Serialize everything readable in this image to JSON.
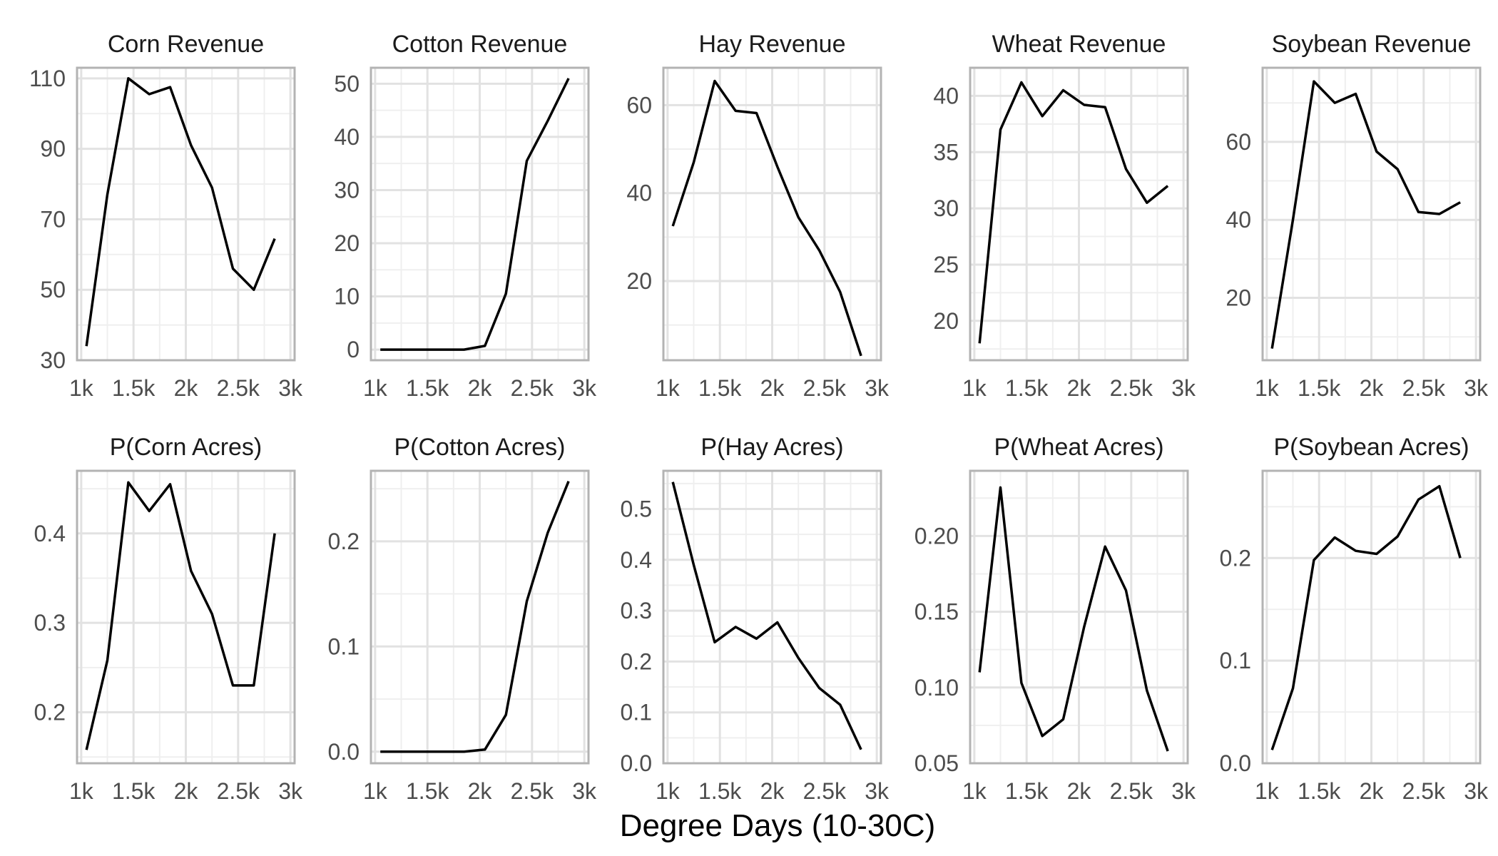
{
  "figure": {
    "xlabel": "Degree Days (10-30C)"
  },
  "chart_data": [
    {
      "type": "line",
      "title": "Corn Revenue",
      "x": [
        1050,
        1250,
        1450,
        1650,
        1850,
        2050,
        2250,
        2450,
        2650,
        2850
      ],
      "y": [
        34,
        77,
        110,
        105.5,
        107.5,
        91,
        79,
        56,
        50,
        64.5
      ],
      "xlim": [
        960,
        3040
      ],
      "ylim": [
        30,
        113
      ],
      "xticks": [
        1000,
        1500,
        2000,
        2500,
        3000
      ],
      "xtick_labels": [
        "1k",
        "1.5k",
        "2k",
        "2.5k",
        "3k"
      ],
      "yticks": [
        30,
        50,
        70,
        90,
        110
      ],
      "ytick_labels": [
        "30",
        "50",
        "70",
        "90",
        "110"
      ],
      "yminor": [
        40,
        60,
        80,
        100
      ]
    },
    {
      "type": "line",
      "title": "Cotton Revenue",
      "x": [
        1050,
        1250,
        1450,
        1650,
        1850,
        2050,
        2250,
        2450,
        2650,
        2850
      ],
      "y": [
        0,
        0,
        0,
        0,
        0,
        0.7,
        10.5,
        35.5,
        43,
        51
      ],
      "xlim": [
        960,
        3040
      ],
      "ylim": [
        -2,
        53
      ],
      "xticks": [
        1000,
        1500,
        2000,
        2500,
        3000
      ],
      "xtick_labels": [
        "1k",
        "1.5k",
        "2k",
        "2.5k",
        "3k"
      ],
      "yticks": [
        0,
        10,
        20,
        30,
        40,
        50
      ],
      "ytick_labels": [
        "0",
        "10",
        "20",
        "30",
        "40",
        "50"
      ],
      "yminor": [
        5,
        15,
        25,
        35,
        45
      ]
    },
    {
      "type": "line",
      "title": "Hay Revenue",
      "x": [
        1050,
        1250,
        1450,
        1650,
        1850,
        2050,
        2250,
        2450,
        2650,
        2850
      ],
      "y": [
        32.5,
        47,
        65.5,
        58.7,
        58.2,
        46,
        34.5,
        27,
        17.5,
        3
      ],
      "xlim": [
        960,
        3040
      ],
      "ylim": [
        2,
        68.5
      ],
      "xticks": [
        1000,
        1500,
        2000,
        2500,
        3000
      ],
      "xtick_labels": [
        "1k",
        "1.5k",
        "2k",
        "2.5k",
        "3k"
      ],
      "yticks": [
        20,
        40,
        60
      ],
      "ytick_labels": [
        "20",
        "40",
        "60"
      ],
      "yminor": [
        10,
        30,
        50
      ]
    },
    {
      "type": "line",
      "title": "Wheat Revenue",
      "x": [
        1050,
        1250,
        1450,
        1650,
        1850,
        2050,
        2250,
        2450,
        2650,
        2850
      ],
      "y": [
        18,
        37,
        41.2,
        38.2,
        40.5,
        39.2,
        39,
        33.5,
        30.5,
        32
      ],
      "xlim": [
        960,
        3040
      ],
      "ylim": [
        16.5,
        42.5
      ],
      "xticks": [
        1000,
        1500,
        2000,
        2500,
        3000
      ],
      "xtick_labels": [
        "1k",
        "1.5k",
        "2k",
        "2.5k",
        "3k"
      ],
      "yticks": [
        20,
        25,
        30,
        35,
        40
      ],
      "ytick_labels": [
        "20",
        "25",
        "30",
        "35",
        "40"
      ],
      "yminor": [
        17.5,
        22.5,
        27.5,
        32.5,
        37.5
      ]
    },
    {
      "type": "line",
      "title": "Soybean Revenue",
      "x": [
        1050,
        1250,
        1450,
        1650,
        1850,
        2050,
        2250,
        2450,
        2650,
        2850
      ],
      "y": [
        7,
        40,
        75.5,
        70,
        72.3,
        57.5,
        53,
        42,
        41.5,
        44.5
      ],
      "xlim": [
        960,
        3040
      ],
      "ylim": [
        4,
        79
      ],
      "xticks": [
        1000,
        1500,
        2000,
        2500,
        3000
      ],
      "xtick_labels": [
        "1k",
        "1.5k",
        "2k",
        "2.5k",
        "3k"
      ],
      "yticks": [
        20,
        40,
        60
      ],
      "ytick_labels": [
        "20",
        "40",
        "60"
      ],
      "yminor": [
        10,
        30,
        50,
        70
      ]
    },
    {
      "type": "line",
      "title": "P(Corn Acres)",
      "x": [
        1050,
        1250,
        1450,
        1650,
        1850,
        2050,
        2250,
        2450,
        2650,
        2850
      ],
      "y": [
        0.158,
        0.258,
        0.457,
        0.425,
        0.455,
        0.358,
        0.31,
        0.23,
        0.23,
        0.4
      ],
      "xlim": [
        960,
        3040
      ],
      "ylim": [
        0.143,
        0.47
      ],
      "xticks": [
        1000,
        1500,
        2000,
        2500,
        3000
      ],
      "xtick_labels": [
        "1k",
        "1.5k",
        "2k",
        "2.5k",
        "3k"
      ],
      "yticks": [
        0.2,
        0.3,
        0.4
      ],
      "ytick_labels": [
        "0.2",
        "0.3",
        "0.4"
      ],
      "yminor": [
        0.15,
        0.25,
        0.35,
        0.45
      ]
    },
    {
      "type": "line",
      "title": "P(Cotton Acres)",
      "x": [
        1050,
        1250,
        1450,
        1650,
        1850,
        2050,
        2250,
        2450,
        2650,
        2850
      ],
      "y": [
        0,
        0,
        0,
        0,
        0,
        0.002,
        0.035,
        0.143,
        0.208,
        0.257
      ],
      "xlim": [
        960,
        3040
      ],
      "ylim": [
        -0.011,
        0.267
      ],
      "xticks": [
        1000,
        1500,
        2000,
        2500,
        3000
      ],
      "xtick_labels": [
        "1k",
        "1.5k",
        "2k",
        "2.5k",
        "3k"
      ],
      "yticks": [
        0.0,
        0.1,
        0.2
      ],
      "ytick_labels": [
        "0.0",
        "0.1",
        "0.2"
      ],
      "yminor": [
        0.05,
        0.15,
        0.25
      ]
    },
    {
      "type": "line",
      "title": "P(Hay Acres)",
      "x": [
        1050,
        1250,
        1450,
        1650,
        1850,
        2050,
        2250,
        2450,
        2650,
        2850
      ],
      "y": [
        0.553,
        0.39,
        0.238,
        0.268,
        0.245,
        0.277,
        0.207,
        0.148,
        0.115,
        0.027
      ],
      "xlim": [
        960,
        3040
      ],
      "ylim": [
        0,
        0.575
      ],
      "xticks": [
        1000,
        1500,
        2000,
        2500,
        3000
      ],
      "xtick_labels": [
        "1k",
        "1.5k",
        "2k",
        "2.5k",
        "3k"
      ],
      "yticks": [
        0.0,
        0.1,
        0.2,
        0.3,
        0.4,
        0.5
      ],
      "ytick_labels": [
        "0.0",
        "0.1",
        "0.2",
        "0.3",
        "0.4",
        "0.5"
      ],
      "yminor": [
        0.05,
        0.15,
        0.25,
        0.35,
        0.45,
        0.55
      ]
    },
    {
      "type": "line",
      "title": "P(Wheat Acres)",
      "x": [
        1050,
        1250,
        1450,
        1650,
        1850,
        2050,
        2250,
        2450,
        2650,
        2850
      ],
      "y": [
        0.11,
        0.232,
        0.103,
        0.068,
        0.079,
        0.14,
        0.193,
        0.164,
        0.098,
        0.058
      ],
      "xlim": [
        960,
        3040
      ],
      "ylim": [
        0.05,
        0.243
      ],
      "xticks": [
        1000,
        1500,
        2000,
        2500,
        3000
      ],
      "xtick_labels": [
        "1k",
        "1.5k",
        "2k",
        "2.5k",
        "3k"
      ],
      "yticks": [
        0.05,
        0.1,
        0.15,
        0.2
      ],
      "ytick_labels": [
        "0.05",
        "0.10",
        "0.15",
        "0.20"
      ],
      "yminor": [
        0.075,
        0.125,
        0.175,
        0.225
      ]
    },
    {
      "type": "line",
      "title": "P(Soybean Acres)",
      "x": [
        1050,
        1250,
        1450,
        1650,
        1850,
        2050,
        2250,
        2450,
        2650,
        2850
      ],
      "y": [
        0.013,
        0.073,
        0.198,
        0.22,
        0.207,
        0.204,
        0.221,
        0.257,
        0.27,
        0.2
      ],
      "xlim": [
        960,
        3040
      ],
      "ylim": [
        0,
        0.285
      ],
      "xticks": [
        1000,
        1500,
        2000,
        2500,
        3000
      ],
      "xtick_labels": [
        "1k",
        "1.5k",
        "2k",
        "2.5k",
        "3k"
      ],
      "yticks": [
        0.0,
        0.1,
        0.2
      ],
      "ytick_labels": [
        "0.0",
        "0.1",
        "0.2"
      ],
      "yminor": [
        0.05,
        0.15,
        0.25
      ]
    }
  ]
}
